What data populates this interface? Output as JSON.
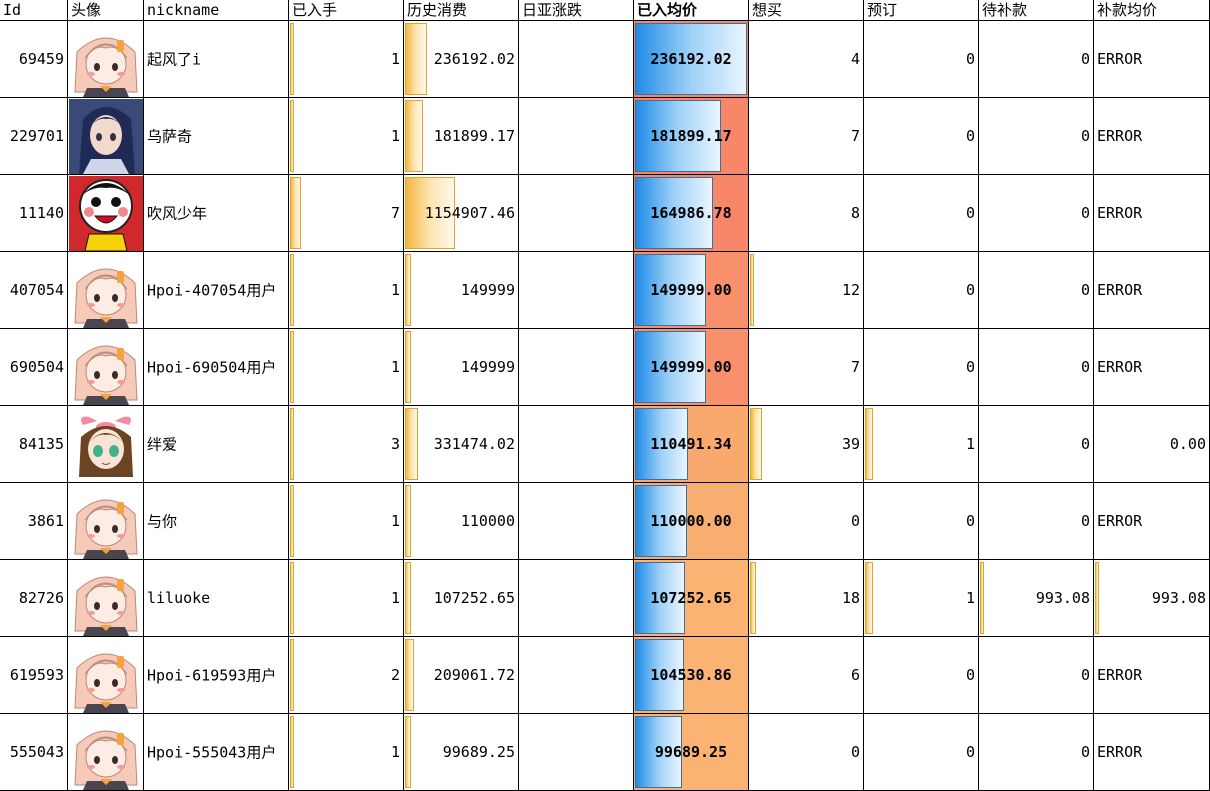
{
  "headers": {
    "id": "Id",
    "avatar": "头像",
    "nickname": "nickname",
    "owned": "已入手",
    "spent": "历史消费",
    "jp_change": "日亚涨跌",
    "avg": "已入均价",
    "want": "想买",
    "preorder": "预订",
    "pending": "待补款",
    "pending_avg": "补款均价"
  },
  "colors": {
    "heat": [
      "#f8876a",
      "#f8876a",
      "#f8876a",
      "#f8906c",
      "#f8906c",
      "#f9a86e",
      "#f9ae71",
      "#fbb374",
      "#fbb374",
      "#fbb374"
    ]
  },
  "rows": [
    {
      "id": "69459",
      "avatar": "anime-girl-pink-hair",
      "nickname": "起风了i",
      "owned": "1",
      "owned_frac": 0.03,
      "spent": "236192.02",
      "spent_frac": 0.2,
      "jp_change": "",
      "avg": "236192.02",
      "avg_frac": 1.0,
      "want": "4",
      "want_frac": 0,
      "preorder": "0",
      "preorder_frac": 0,
      "pending": "0",
      "pending_frac": 0,
      "pending_avg": "ERROR"
    },
    {
      "id": "229701",
      "avatar": "anime-dark-hair-girl",
      "nickname": "乌萨奇",
      "owned": "1",
      "owned_frac": 0.03,
      "spent": "181899.17",
      "spent_frac": 0.16,
      "jp_change": "",
      "avg": "181899.17",
      "avg_frac": 0.77,
      "want": "7",
      "want_frac": 0,
      "preorder": "0",
      "preorder_frac": 0,
      "pending": "0",
      "pending_frac": 0,
      "pending_avg": "ERROR"
    },
    {
      "id": "11140",
      "avatar": "wangzai-boy",
      "nickname": "吹风少年",
      "owned": "7",
      "owned_frac": 0.1,
      "spent": "1154907.46",
      "spent_frac": 0.45,
      "jp_change": "",
      "avg": "164986.78",
      "avg_frac": 0.7,
      "want": "8",
      "want_frac": 0,
      "preorder": "0",
      "preorder_frac": 0,
      "pending": "0",
      "pending_frac": 0,
      "pending_avg": "ERROR"
    },
    {
      "id": "407054",
      "avatar": "anime-girl-pink-hair",
      "nickname": "Hpoi-407054用户",
      "owned": "1",
      "owned_frac": 0.03,
      "spent": "149999",
      "spent_frac": 0.05,
      "jp_change": "",
      "avg": "149999.00",
      "avg_frac": 0.63,
      "want": "12",
      "want_frac": 0.03,
      "preorder": "0",
      "preorder_frac": 0,
      "pending": "0",
      "pending_frac": 0,
      "pending_avg": "ERROR"
    },
    {
      "id": "690504",
      "avatar": "anime-girl-pink-hair",
      "nickname": "Hpoi-690504用户",
      "owned": "1",
      "owned_frac": 0.03,
      "spent": "149999",
      "spent_frac": 0.05,
      "jp_change": "",
      "avg": "149999.00",
      "avg_frac": 0.63,
      "want": "7",
      "want_frac": 0,
      "preorder": "0",
      "preorder_frac": 0,
      "pending": "0",
      "pending_frac": 0,
      "pending_avg": "ERROR"
    },
    {
      "id": "84135",
      "avatar": "kizuna-ai",
      "nickname": "绊爱",
      "owned": "3",
      "owned_frac": 0.04,
      "spent": "331474.02",
      "spent_frac": 0.12,
      "jp_change": "",
      "avg": "110491.34",
      "avg_frac": 0.47,
      "want": "39",
      "want_frac": 0.11,
      "preorder": "1",
      "preorder_frac": 0.07,
      "pending": "0",
      "pending_frac": 0,
      "pending_avg": "0.00"
    },
    {
      "id": "3861",
      "avatar": "anime-girl-pink-hair",
      "nickname": "与你",
      "owned": "1",
      "owned_frac": 0.03,
      "spent": "110000",
      "spent_frac": 0.05,
      "jp_change": "",
      "avg": "110000.00",
      "avg_frac": 0.46,
      "want": "0",
      "want_frac": 0,
      "preorder": "0",
      "preorder_frac": 0,
      "pending": "0",
      "pending_frac": 0,
      "pending_avg": "ERROR"
    },
    {
      "id": "82726",
      "avatar": "anime-girl-pink-hair",
      "nickname": "liluoke",
      "owned": "1",
      "owned_frac": 0.03,
      "spent": "107252.65",
      "spent_frac": 0.05,
      "jp_change": "",
      "avg": "107252.65",
      "avg_frac": 0.45,
      "want": "18",
      "want_frac": 0.05,
      "preorder": "1",
      "preorder_frac": 0.07,
      "pending": "993.08",
      "pending_frac": 0.02,
      "pending_avg": "993.08"
    },
    {
      "id": "619593",
      "avatar": "anime-girl-pink-hair",
      "nickname": "Hpoi-619593用户",
      "owned": "2",
      "owned_frac": 0.03,
      "spent": "209061.72",
      "spent_frac": 0.08,
      "jp_change": "",
      "avg": "104530.86",
      "avg_frac": 0.44,
      "want": "6",
      "want_frac": 0,
      "preorder": "0",
      "preorder_frac": 0,
      "pending": "0",
      "pending_frac": 0,
      "pending_avg": "ERROR"
    },
    {
      "id": "555043",
      "avatar": "anime-girl-pink-hair",
      "nickname": "Hpoi-555043用户",
      "owned": "1",
      "owned_frac": 0.03,
      "spent": "99689.25",
      "spent_frac": 0.05,
      "jp_change": "",
      "avg": "99689.25",
      "avg_frac": 0.42,
      "want": "0",
      "want_frac": 0,
      "preorder": "0",
      "preorder_frac": 0,
      "pending": "0",
      "pending_frac": 0,
      "pending_avg": "ERROR"
    }
  ]
}
